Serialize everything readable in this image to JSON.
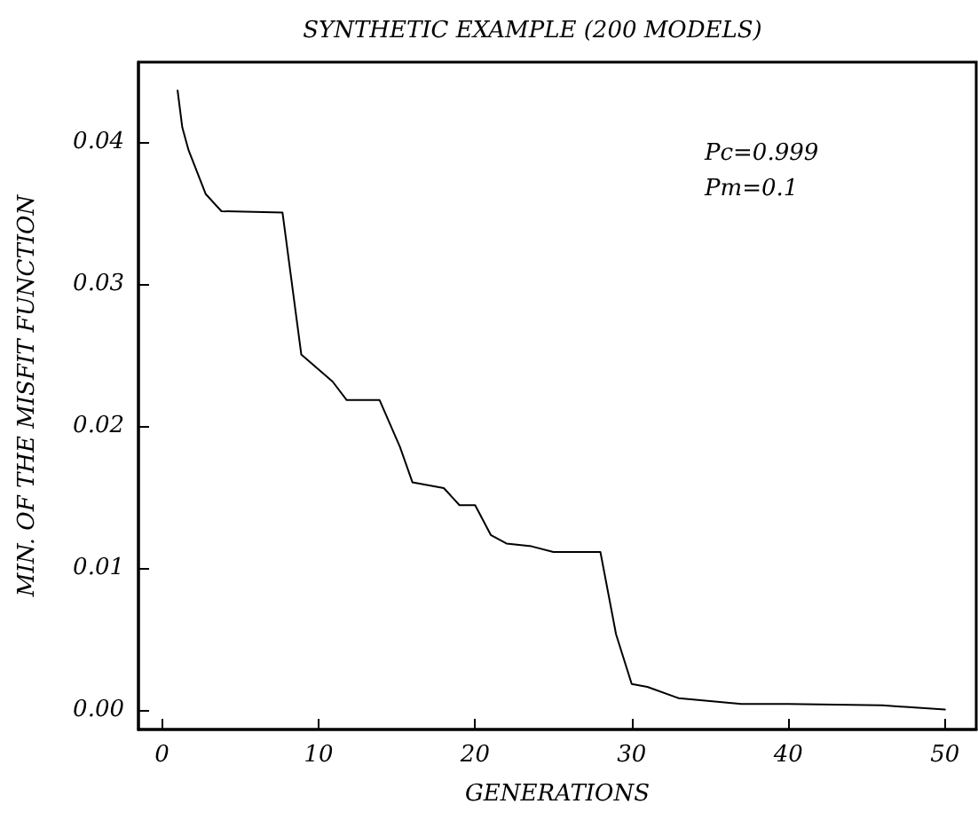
{
  "chart_data": {
    "type": "line",
    "title": "SYNTHETIC EXAMPLE (200 MODELS)",
    "xlabel": "GENERATIONS",
    "ylabel": "MIN. OF THE MISFIT FUNCTION",
    "annotations": [
      "Pc=0.999",
      "Pm=0.1"
    ],
    "xlim": [
      -1.5,
      52
    ],
    "ylim": [
      -0.0014,
      0.0456
    ],
    "xticks": [
      0,
      10,
      20,
      30,
      40,
      50
    ],
    "yticks": [
      {
        "value": 0,
        "label": "0.00"
      },
      {
        "value": 0.01,
        "label": "0.01"
      },
      {
        "value": 0.02,
        "label": "0.02"
      },
      {
        "value": 0.03,
        "label": "0.03"
      },
      {
        "value": 0.04,
        "label": "0.04"
      }
    ],
    "grid": false,
    "marker": "none",
    "line_style": "solid",
    "series": [
      {
        "color": "#000000",
        "x": [
          1,
          1.3,
          1.7,
          2.8,
          3.8,
          7.7,
          8.9,
          10.9,
          11.8,
          13.9,
          15.2,
          16,
          18,
          19,
          20,
          21,
          22,
          23.6,
          25,
          28,
          29,
          30,
          31,
          33,
          37,
          40,
          46,
          50
        ],
        "values": [
          0.0436,
          0.041,
          0.0394,
          0.0363,
          0.0351,
          0.035,
          0.025,
          0.0231,
          0.0218,
          0.0218,
          0.0185,
          0.016,
          0.0156,
          0.0144,
          0.0144,
          0.0123,
          0.0117,
          0.0115,
          0.0111,
          0.0111,
          0.0053,
          0.0018,
          0.0016,
          0.0008,
          0.0004,
          0.0004,
          0.0003,
          0.0
        ]
      }
    ]
  }
}
